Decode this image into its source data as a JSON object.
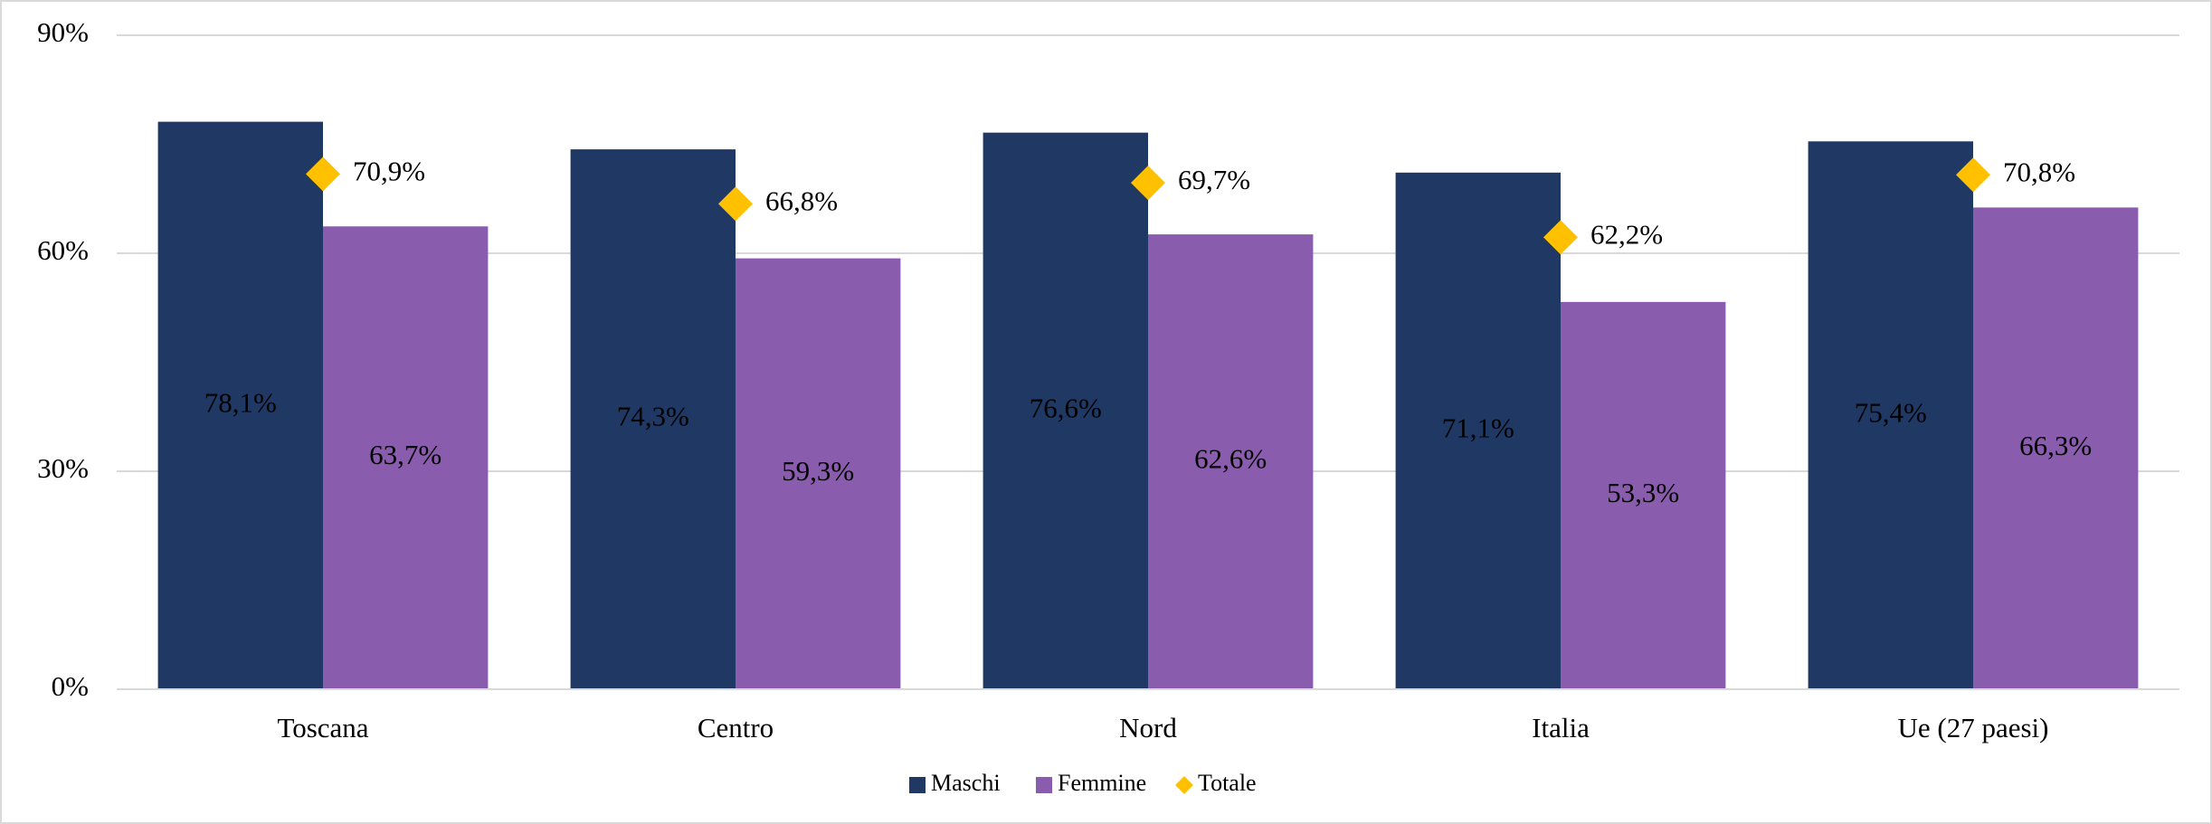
{
  "chart_data": {
    "type": "bar",
    "categories": [
      "Toscana",
      "Centro",
      "Nord",
      "Italia",
      "Ue (27 paesi)"
    ],
    "series": [
      {
        "name": "Maschi",
        "color": "#1f3864",
        "values": [
          78.1,
          74.3,
          76.6,
          71.1,
          75.4
        ],
        "value_labels": [
          "78,1%",
          "74,3%",
          "76,6%",
          "71,1%",
          "75,4%"
        ]
      },
      {
        "name": "Femmine",
        "color": "#8a5cad",
        "values": [
          63.7,
          59.3,
          62.6,
          53.3,
          66.3
        ],
        "value_labels": [
          "63,7%",
          "59,3%",
          "62,6%",
          "53,3%",
          "66,3%"
        ]
      },
      {
        "name": "Totale",
        "color": "#ffc000",
        "marker": "diamond",
        "values": [
          70.9,
          66.8,
          69.7,
          62.2,
          70.8
        ],
        "value_labels": [
          "70,9%",
          "66,8%",
          "69,7%",
          "62,2%",
          "70,8%"
        ]
      }
    ],
    "ylim": [
      0,
      90
    ],
    "yticks": [
      {
        "value": 0,
        "label": "0%"
      },
      {
        "value": 30,
        "label": "30%"
      },
      {
        "value": 60,
        "label": "60%"
      },
      {
        "value": 90,
        "label": "90%"
      }
    ],
    "grid": true,
    "legend": "bottom"
  }
}
